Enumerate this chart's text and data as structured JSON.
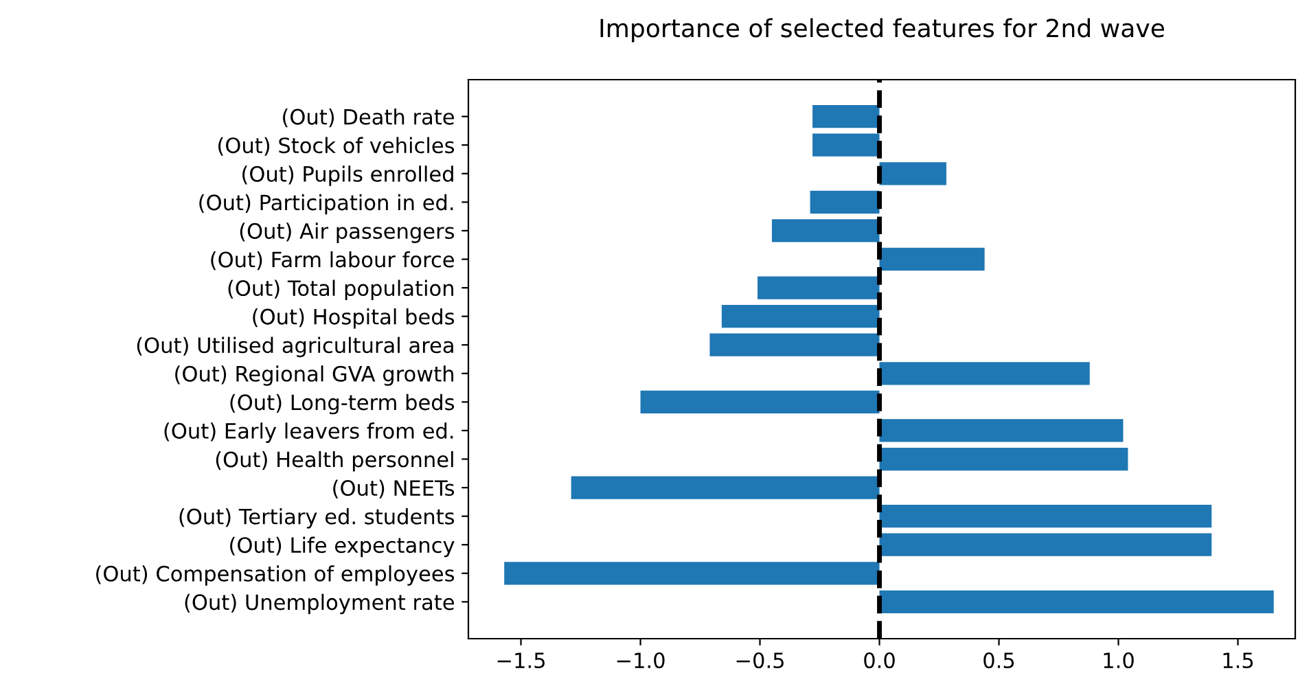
{
  "chart_data": {
    "type": "bar",
    "orientation": "horizontal",
    "title": "Importance of selected features for 2nd wave",
    "categories": [
      "(Out) Death rate",
      "(Out) Stock of vehicles",
      "(Out) Pupils enrolled",
      "(Out) Participation in ed.",
      "(Out) Air passengers",
      "(Out) Farm labour force",
      "(Out) Total population",
      "(Out) Hospital beds",
      "(Out) Utilised agricultural area",
      "(Out) Regional GVA growth",
      "(Out) Long-term beds",
      "(Out) Early leavers from ed.",
      "(Out) Health personnel",
      "(Out) NEETs",
      "(Out) Tertiary ed. students",
      "(Out) Life expectancy",
      "(Out) Compensation of employees",
      "(Out) Unemployment rate"
    ],
    "values": [
      -0.28,
      -0.28,
      0.28,
      -0.29,
      -0.45,
      0.44,
      -0.51,
      -0.66,
      -0.71,
      0.88,
      -1.0,
      1.02,
      1.04,
      -1.29,
      1.39,
      1.39,
      -1.57,
      1.65
    ],
    "color": "#1f77b4",
    "xlim": [
      -1.72,
      1.74
    ],
    "xticks": [
      {
        "value": -1.5,
        "label": "−1.5"
      },
      {
        "value": -1.0,
        "label": "−1.0"
      },
      {
        "value": -0.5,
        "label": "−0.5"
      },
      {
        "value": 0,
        "label": "0.0"
      },
      {
        "value": 0.5,
        "label": "0.5"
      },
      {
        "value": 1.0,
        "label": "1.0"
      },
      {
        "value": 1.5,
        "label": "1.5"
      }
    ],
    "ref_lines": [
      {
        "axis": "x",
        "value": 0,
        "color": "#000000",
        "line_style": "dashed"
      }
    ],
    "grid": false,
    "legend": false
  }
}
